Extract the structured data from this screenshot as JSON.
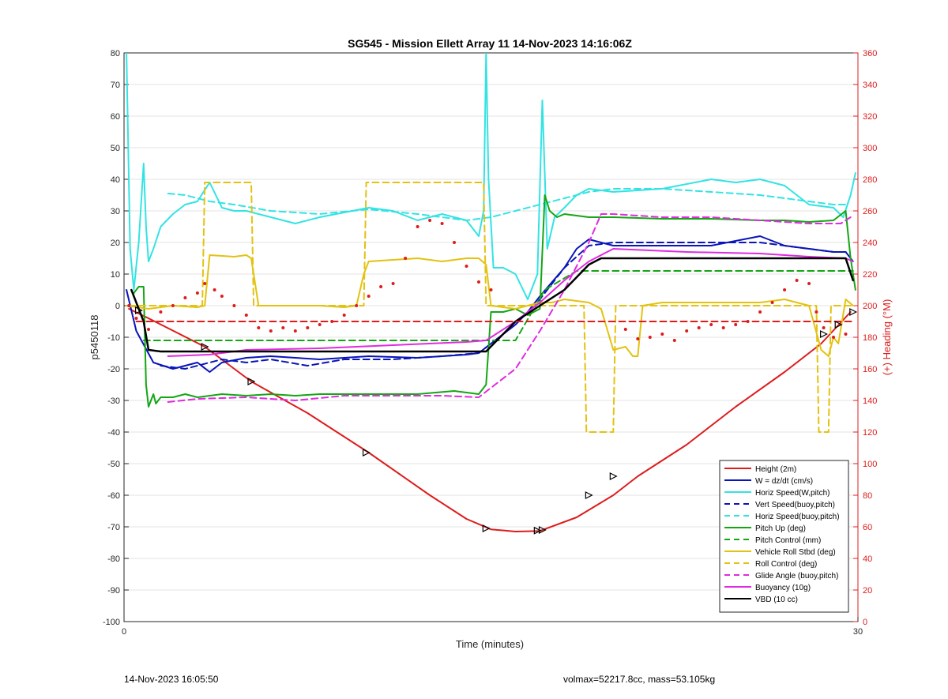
{
  "colors": {
    "height": "#dd1c1c",
    "w": "#0a14b8",
    "horiz_speed": "#33e3e3",
    "pitch": "#14a614",
    "roll": "#e3c211",
    "glide": "#e02be0",
    "vbd": "#000000",
    "right_axis": "#dd1c1c"
  },
  "footer": {
    "left": "14-Nov-2023 16:05:50",
    "right": "volmax=52217.8cc, mass=53.105kg"
  },
  "chart_data": {
    "type": "line",
    "title": "SG545 - Mission Ellett Array 11 14-Nov-2023 14:16:06Z",
    "xlabel": "Time (minutes)",
    "ylabel": "p5450118",
    "ylabel_right": "(+) Heading (°M)",
    "xlim": [
      0,
      30
    ],
    "ylim": [
      -100,
      80
    ],
    "ylim_right": [
      0,
      360
    ],
    "xticks": [
      "0",
      "30"
    ],
    "yticks": [
      "-100",
      "-90",
      "-80",
      "-70",
      "-60",
      "-50",
      "-40",
      "-30",
      "-20",
      "-10",
      "0",
      "10",
      "20",
      "30",
      "40",
      "50",
      "60",
      "70",
      "80"
    ],
    "yticks_right": [
      "0",
      "20",
      "40",
      "60",
      "80",
      "100",
      "120",
      "140",
      "160",
      "180",
      "200",
      "220",
      "240",
      "260",
      "280",
      "300",
      "320",
      "340",
      "360"
    ],
    "grid": true,
    "legend_position": "bottom-right",
    "legend": [
      {
        "label": "Height (2m)",
        "color": "#dd1c1c",
        "dash": false
      },
      {
        "label": "W = dz/dt (cm/s)",
        "color": "#0a14b8",
        "dash": false
      },
      {
        "label": "Horiz Speed(W,pitch)",
        "color": "#33e3e3",
        "dash": false
      },
      {
        "label": "Vert Speed(buoy,pitch)",
        "color": "#0a14b8",
        "dash": true
      },
      {
        "label": "Horiz Speed(buoy,pitch)",
        "color": "#33e3e3",
        "dash": true
      },
      {
        "label": "Pitch Up (deg)",
        "color": "#14a614",
        "dash": false
      },
      {
        "label": "Pitch Control (mm)",
        "color": "#14a614",
        "dash": true
      },
      {
        "label": "Vehicle Roll Stbd (deg)",
        "color": "#e3c211",
        "dash": false
      },
      {
        "label": "Roll Control (deg)",
        "color": "#e3c211",
        "dash": true
      },
      {
        "label": "Glide Angle (buoy,pitch)",
        "color": "#e02be0",
        "dash": true
      },
      {
        "label": "Buoyancy (10g)",
        "color": "#e02be0",
        "dash": false
      },
      {
        "label": "VBD (10 cc)",
        "color": "#000000",
        "dash": false
      }
    ],
    "series": [
      {
        "key": "height",
        "color": "#dd1c1c",
        "dash": false,
        "width": 2,
        "x": [
          0.2,
          1.0,
          3.3,
          5.2,
          7.5,
          10.0,
          12.5,
          14.0,
          15.0,
          16.0,
          17.0,
          18.5,
          20.0,
          21.0,
          23.0,
          25.0,
          27.0,
          28.5,
          29.7
        ],
        "y": [
          -1,
          -4,
          -13,
          -24,
          -34,
          -46.5,
          -60,
          -67.5,
          -70.8,
          -71.5,
          -71.3,
          -67,
          -60,
          -54,
          -44,
          -32,
          -21,
          -12,
          -2
        ]
      },
      {
        "key": "w",
        "color": "#0a14b8",
        "dash": false,
        "width": 2,
        "x": [
          0.1,
          0.5,
          1.2,
          2.0,
          3.0,
          3.5,
          4.0,
          5.0,
          6.0,
          8.0,
          10.0,
          12.0,
          14.0,
          14.5,
          15.0,
          16.0,
          16.5,
          17.0,
          18.0,
          18.5,
          19.0,
          20.0,
          22.0,
          24.0,
          26.0,
          27.0,
          28.0,
          29.0,
          29.5,
          29.8
        ],
        "y": [
          5,
          -8,
          -18,
          -20,
          -18,
          -21,
          -18,
          -16.5,
          -16,
          -17,
          -16,
          -16.5,
          -15.5,
          -15,
          -12,
          -6,
          -2,
          3,
          12,
          18,
          21,
          19,
          19,
          19,
          22,
          19,
          18,
          17,
          17,
          14
        ]
      },
      {
        "key": "horiz_speed",
        "color": "#33e3e3",
        "dash": false,
        "width": 2,
        "x": [
          0.1,
          0.25,
          0.4,
          0.6,
          0.8,
          0.9,
          1.0,
          1.2,
          1.5,
          2.0,
          2.5,
          3.0,
          3.5,
          4.0,
          4.5,
          5.0,
          6.0,
          7.0,
          8.0,
          9.0,
          10.0,
          11.0,
          12.0,
          13.0,
          14.0,
          14.5,
          14.7,
          14.8,
          14.9,
          15.1,
          15.5,
          16.0,
          16.5,
          16.9,
          17.1,
          17.3,
          17.6,
          18.0,
          18.5,
          19.0,
          20.0,
          22.0,
          24.0,
          25.0,
          26.0,
          27.0,
          28.0,
          29.0,
          29.4,
          29.7,
          29.9
        ],
        "y": [
          80,
          18,
          5,
          20,
          45,
          25,
          14,
          18,
          25,
          29,
          32,
          33,
          39,
          31,
          30,
          30,
          28,
          26,
          28,
          29.5,
          31,
          30,
          27,
          29,
          27,
          22,
          30,
          80,
          40,
          12,
          12,
          10,
          2,
          10,
          65,
          18,
          28,
          31,
          35,
          37,
          36,
          37,
          40,
          39,
          40,
          38,
          32,
          31,
          28,
          35,
          42
        ]
      },
      {
        "key": "vert_speed_buoy",
        "color": "#0a14b8",
        "dash": true,
        "width": 2,
        "x": [
          1.5,
          2.5,
          4.0,
          5.0,
          6.0,
          7.5,
          9.0,
          11.0,
          13.0,
          14.5,
          15.0,
          16.0,
          17.0,
          18.0,
          19.0,
          20.0,
          22.0,
          24.0,
          26.0,
          27.0,
          28.0,
          29.0,
          29.5
        ],
        "y": [
          -19,
          -20,
          -17,
          -18,
          -17,
          -19,
          -17,
          -17,
          -16,
          -15,
          -12,
          -6,
          2,
          12,
          19,
          20,
          20,
          20,
          20,
          19,
          18,
          17,
          17
        ]
      },
      {
        "key": "horiz_speed_buoy",
        "color": "#33e3e3",
        "dash": true,
        "width": 2,
        "x": [
          1.8,
          2.5,
          3.5,
          4.5,
          6.0,
          8.0,
          10.0,
          12.0,
          14.0,
          15.0,
          16.0,
          17.0,
          18.0,
          19.0,
          20.0,
          22.0,
          24.0,
          26.0,
          27.0,
          28.0,
          29.0,
          29.5
        ],
        "y": [
          35.5,
          35,
          33,
          32,
          30,
          29,
          30.5,
          29,
          27,
          28,
          30,
          32,
          34,
          36,
          37,
          37,
          36,
          35,
          34,
          33,
          32,
          32
        ]
      },
      {
        "key": "pitch_up",
        "color": "#14a614",
        "dash": false,
        "width": 2,
        "x": [
          0.4,
          0.6,
          0.8,
          0.9,
          1.0,
          1.2,
          1.3,
          1.5,
          2.0,
          2.5,
          3.0,
          4.0,
          5.0,
          6.0,
          7.0,
          8.0,
          10.0,
          12.0,
          13.5,
          14.5,
          14.8,
          15.0,
          15.5,
          16.0,
          16.5,
          17.0,
          17.2,
          17.4,
          17.7,
          18.0,
          19.0,
          20.0,
          22.0,
          24.0,
          26.0,
          27.0,
          28.0,
          29.0,
          29.5,
          29.7,
          29.9
        ],
        "y": [
          4,
          6,
          6,
          -25,
          -32,
          -28,
          -31,
          -29,
          -29,
          -28,
          -29,
          -28,
          -28.5,
          -28,
          -28.5,
          -28,
          -28,
          -28,
          -27,
          -28,
          -25,
          -2,
          -2,
          -1,
          -3,
          -1,
          35,
          30,
          28,
          29,
          28,
          28,
          27.5,
          27.5,
          27,
          27,
          26.5,
          27,
          30,
          15,
          5
        ]
      },
      {
        "key": "pitch_control",
        "color": "#14a614",
        "dash": true,
        "width": 2,
        "x": [
          0.8,
          14.8,
          16.0,
          17.2,
          18.5,
          29.8
        ],
        "y": [
          -11,
          -11,
          -11,
          5,
          11,
          11
        ]
      },
      {
        "key": "roll",
        "color": "#e3c211",
        "dash": false,
        "width": 2,
        "x": [
          0.1,
          1.0,
          2.0,
          3.0,
          3.3,
          3.5,
          4.5,
          5.0,
          5.2,
          5.5,
          6.5,
          8.0,
          9.0,
          9.5,
          9.8,
          10.0,
          12.0,
          13.0,
          14.0,
          14.5,
          14.8,
          15.0,
          16.0,
          17.0,
          17.5,
          18.0,
          19.0,
          19.5,
          20.0,
          20.5,
          20.8,
          21.0,
          21.2,
          22.0,
          24.0,
          26.0,
          27.0,
          28.0,
          28.5,
          28.8,
          29.0,
          29.2,
          29.5,
          29.8
        ],
        "y": [
          0,
          -1,
          0,
          -0.5,
          0,
          16,
          15.5,
          16,
          15,
          0,
          0,
          0,
          -0.5,
          0,
          10,
          14,
          15,
          14,
          15,
          15,
          13,
          0,
          -1,
          1,
          1,
          2,
          1,
          -1,
          -14,
          -13,
          -16,
          -16,
          0,
          1,
          1,
          1,
          2,
          0,
          -14,
          -16,
          -10,
          -12,
          2,
          0
        ]
      },
      {
        "key": "roll_control",
        "color": "#e3c211",
        "dash": true,
        "width": 2,
        "x": [
          0.2,
          3.2,
          3.3,
          5.2,
          5.3,
          9.8,
          9.9,
          14.7,
          14.8,
          18.8,
          18.9,
          20.0,
          20.1,
          28.3,
          28.4,
          28.8,
          28.9,
          29.8
        ],
        "y": [
          0,
          0,
          39,
          39,
          0,
          0,
          39,
          39,
          0,
          0,
          -40,
          -40,
          0,
          0,
          -40,
          -40,
          0,
          0
        ]
      },
      {
        "key": "glide_angle",
        "color": "#e02be0",
        "dash": true,
        "width": 2,
        "x": [
          1.8,
          3.0,
          5.0,
          7.0,
          9.0,
          11.0,
          13.0,
          14.5,
          15.0,
          16.0,
          17.0,
          18.0,
          19.0,
          19.5,
          20.0,
          22.0,
          24.0,
          26.0,
          28.0,
          29.3,
          29.7
        ],
        "y": [
          -30.5,
          -29.5,
          -29,
          -30,
          -28.5,
          -28.5,
          -28.5,
          -29,
          -26,
          -20,
          -8,
          5,
          20,
          29,
          29,
          28,
          28,
          27,
          26,
          26,
          28
        ]
      },
      {
        "key": "buoyancy",
        "color": "#e02be0",
        "dash": false,
        "width": 2,
        "x": [
          1.8,
          3.5,
          5.0,
          8.0,
          11.0,
          14.0,
          14.8,
          16.0,
          17.0,
          18.0,
          19.0,
          20.0,
          23.0,
          26.0,
          28.0,
          29.5,
          29.8
        ],
        "y": [
          -16,
          -15.5,
          -14,
          -13.5,
          -12.5,
          -11.5,
          -11,
          -5,
          1,
          8,
          14,
          18,
          17,
          16.5,
          15.5,
          15,
          14
        ]
      },
      {
        "key": "vbd",
        "color": "#000000",
        "dash": false,
        "width": 2.5,
        "x": [
          0.3,
          0.4,
          0.8,
          1.0,
          1.5,
          14.8,
          16.0,
          17.0,
          18.0,
          19.0,
          19.5,
          20.0,
          29.5,
          29.8
        ],
        "y": [
          5,
          3,
          -5,
          -14,
          -14.5,
          -14.5,
          -5,
          0,
          5,
          13,
          15,
          15,
          15,
          8
        ]
      },
      {
        "key": "heading",
        "color": "#dd1c1c",
        "dash": true,
        "width": 2,
        "axis": "right",
        "x": [
          0.5,
          29.8
        ],
        "y": [
          190,
          190
        ]
      }
    ],
    "heading_points": {
      "color": "#dd1c1c",
      "axis": "right",
      "x": [
        0.2,
        0.5,
        1.0,
        1.5,
        2.0,
        2.5,
        3.0,
        3.3,
        3.7,
        4.0,
        4.5,
        5.0,
        5.5,
        6.0,
        6.5,
        7.0,
        7.5,
        8.0,
        8.5,
        9.0,
        9.5,
        10.0,
        10.5,
        11.0,
        11.5,
        12.0,
        12.5,
        13.0,
        13.5,
        14.0,
        14.5,
        15.0,
        20.5,
        21.0,
        21.5,
        22.0,
        22.5,
        23.0,
        23.5,
        24.0,
        24.5,
        25.0,
        25.5,
        26.0,
        26.5,
        27.0,
        27.5,
        28.0,
        28.3,
        28.6,
        29.0,
        29.5
      ],
      "y": [
        200,
        192,
        185,
        196,
        200,
        205,
        208,
        214,
        210,
        206,
        200,
        194,
        186,
        184,
        186,
        184,
        186,
        188,
        190,
        194,
        200,
        206,
        212,
        214,
        230,
        250,
        254,
        252,
        240,
        225,
        215,
        210,
        185,
        179,
        180,
        182,
        178,
        184,
        186,
        188,
        186,
        188,
        190,
        196,
        202,
        210,
        216,
        214,
        196,
        186,
        180,
        182
      ]
    },
    "markers": {
      "color": "#000000",
      "x": [
        0.6,
        3.3,
        5.2,
        9.9,
        14.8,
        16.9,
        17.1,
        19.0,
        20.0,
        28.6,
        29.2,
        29.8
      ],
      "y": [
        -1.5,
        -13,
        -24,
        -46.5,
        -70.5,
        -71.2,
        -71,
        -60,
        -54,
        -9,
        -6,
        -2
      ]
    }
  }
}
